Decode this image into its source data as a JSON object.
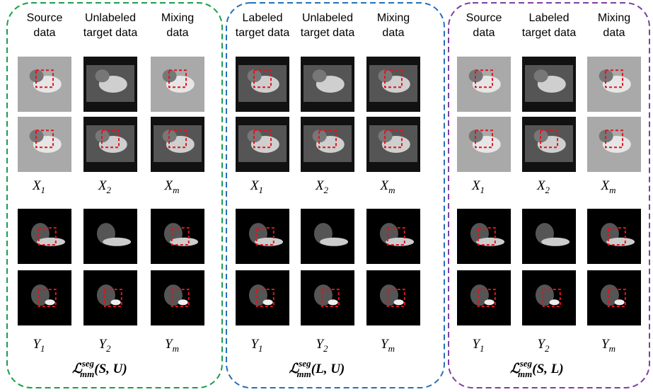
{
  "panels": [
    {
      "columns": [
        [
          "Source",
          "data"
        ],
        [
          "Unlabeled",
          "target data"
        ],
        [
          "Mixing",
          "data"
        ]
      ],
      "image_labels": [
        {
          "base": "X",
          "sub": "1"
        },
        {
          "base": "X",
          "sub": "2"
        },
        {
          "base": "X",
          "sub": "m"
        }
      ],
      "mask_labels": [
        {
          "base": "Y",
          "sub": "1"
        },
        {
          "base": "Y",
          "sub": "2"
        },
        {
          "base": "Y",
          "sub": "m"
        }
      ],
      "loss": {
        "symbol": "ℒ",
        "superscript": "seg",
        "subscript": "mm",
        "arguments": "(S, U)"
      }
    },
    {
      "columns": [
        [
          "Labeled",
          "target data"
        ],
        [
          "Unlabeled",
          "target data"
        ],
        [
          "Mixing",
          "data"
        ]
      ],
      "image_labels": [
        {
          "base": "X",
          "sub": "1"
        },
        {
          "base": "X",
          "sub": "2"
        },
        {
          "base": "X",
          "sub": "m"
        }
      ],
      "mask_labels": [
        {
          "base": "Y",
          "sub": "1"
        },
        {
          "base": "Y",
          "sub": "2"
        },
        {
          "base": "Y",
          "sub": "m"
        }
      ],
      "loss": {
        "symbol": "ℒ",
        "superscript": "seg",
        "subscript": "mm",
        "arguments": "(L, U)"
      }
    },
    {
      "columns": [
        [
          "Source",
          "data"
        ],
        [
          "Labeled",
          "target data"
        ],
        [
          "Mixing",
          "data"
        ]
      ],
      "image_labels": [
        {
          "base": "X",
          "sub": "1"
        },
        {
          "base": "X",
          "sub": "2"
        },
        {
          "base": "X",
          "sub": "m"
        }
      ],
      "mask_labels": [
        {
          "base": "Y",
          "sub": "1"
        },
        {
          "base": "Y",
          "sub": "2"
        },
        {
          "base": "Y",
          "sub": "m"
        }
      ],
      "loss": {
        "symbol": "ℒ",
        "superscript": "seg",
        "subscript": "mm",
        "arguments": "(S, L)"
      }
    }
  ]
}
